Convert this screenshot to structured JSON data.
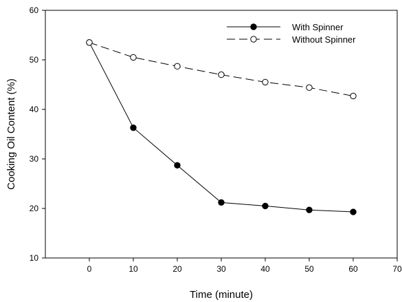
{
  "colors": {
    "background": "#ffffff",
    "ink": "#000000",
    "open_marker_fill": "#ffffff"
  },
  "chart_data": {
    "type": "line",
    "title": "",
    "xlabel": "Time (minute)",
    "ylabel": "Cooking Oil Content (%)",
    "xlim": [
      -10,
      70
    ],
    "ylim": [
      10,
      60
    ],
    "xticks": [
      0,
      10,
      20,
      30,
      40,
      50,
      60,
      70
    ],
    "yticks": [
      10,
      20,
      30,
      40,
      50,
      60
    ],
    "xtick_labels": [
      "0",
      "10",
      "20",
      "30",
      "40",
      "50",
      "60",
      "70"
    ],
    "ytick_labels": [
      "10",
      "20",
      "30",
      "40",
      "50",
      "60"
    ],
    "x": [
      0,
      10,
      20,
      30,
      40,
      50,
      60
    ],
    "grid": false,
    "legend_position": "top-right",
    "series": [
      {
        "name": "With Spinner",
        "line_style": "solid",
        "marker": "filled-circle",
        "values": [
          53.5,
          36.3,
          28.7,
          21.2,
          20.5,
          19.7,
          19.3
        ]
      },
      {
        "name": "Without Spinner",
        "line_style": "dashed",
        "marker": "open-circle",
        "values": [
          53.5,
          50.5,
          48.7,
          47.0,
          45.5,
          44.4,
          42.7
        ]
      }
    ]
  }
}
